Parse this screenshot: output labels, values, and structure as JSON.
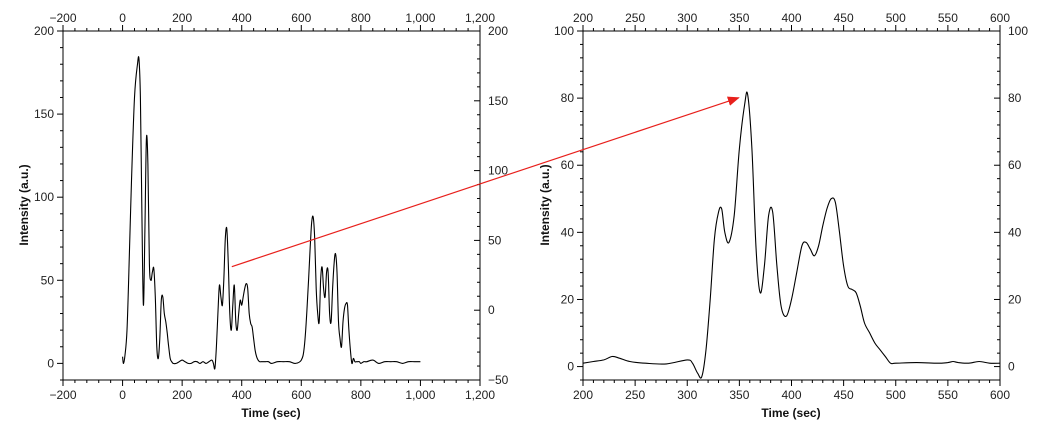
{
  "chart_data": [
    {
      "type": "line",
      "xlabel": "Time (sec)",
      "ylabel": "Intensity (a.u.)",
      "xlim": [
        -200,
        1200
      ],
      "ylim": [
        -10,
        200
      ],
      "x_ticks": [
        "-200",
        "0",
        "200",
        "400",
        "600",
        "800",
        "1,000",
        "1,200"
      ],
      "x_ticks_top": [
        "-200",
        "0",
        "200",
        "400",
        "600",
        "800",
        "1,000",
        "1,200"
      ],
      "y_ticks": [
        "0",
        "50",
        "100",
        "150",
        "200"
      ],
      "y_ticks_right": [
        "-50",
        "0",
        "50",
        "100",
        "150",
        "200"
      ],
      "right_axis_lim": [
        -50,
        200
      ],
      "series": [
        {
          "x": [
            0,
            3,
            8,
            15,
            22,
            30,
            40,
            50,
            55,
            60,
            65,
            70,
            75,
            80,
            85,
            90,
            95,
            100,
            105,
            110,
            115,
            120,
            125,
            130,
            135,
            140,
            145,
            150,
            155,
            160,
            165,
            170,
            180,
            190,
            200,
            210,
            220,
            230,
            240,
            250,
            260,
            270,
            280,
            290,
            300,
            305,
            310,
            315,
            320,
            325,
            330,
            335,
            340,
            345,
            350,
            355,
            360,
            365,
            370,
            375,
            380,
            385,
            390,
            395,
            400,
            405,
            410,
            415,
            420,
            425,
            430,
            435,
            440,
            445,
            450,
            455,
            460,
            465,
            470,
            480,
            490,
            500,
            520,
            540,
            560,
            580,
            600,
            610,
            620,
            630,
            635,
            640,
            645,
            650,
            655,
            660,
            665,
            670,
            675,
            680,
            685,
            690,
            695,
            700,
            705,
            710,
            715,
            720,
            725,
            730,
            735,
            740,
            745,
            750,
            755,
            760,
            765,
            770,
            775,
            780,
            785,
            790,
            795,
            800,
            810,
            820,
            840,
            860,
            880,
            900,
            920,
            940,
            960,
            980,
            1000
          ],
          "y": [
            4,
            0,
            5,
            20,
            60,
            110,
            160,
            180,
            183,
            160,
            90,
            35,
            80,
            135,
            120,
            60,
            50,
            55,
            57,
            40,
            10,
            3,
            15,
            38,
            40,
            30,
            25,
            18,
            10,
            3,
            1,
            0,
            0,
            1,
            2,
            1,
            0,
            0,
            1,
            1,
            0,
            1,
            0,
            1,
            2,
            0,
            -3,
            10,
            30,
            47,
            40,
            35,
            50,
            75,
            81,
            60,
            30,
            20,
            35,
            47,
            25,
            20,
            30,
            38,
            35,
            40,
            45,
            48,
            45,
            30,
            24,
            22,
            15,
            8,
            4,
            2,
            1,
            1,
            1,
            1,
            1,
            0,
            1,
            1,
            1,
            0,
            2,
            10,
            35,
            70,
            85,
            88,
            75,
            45,
            30,
            25,
            50,
            58,
            45,
            40,
            55,
            55,
            30,
            25,
            45,
            60,
            66,
            55,
            25,
            15,
            10,
            25,
            33,
            36,
            35,
            20,
            8,
            0,
            3,
            1,
            1,
            1,
            1,
            0,
            1,
            1,
            2,
            0,
            1,
            1,
            1,
            0,
            1,
            1,
            1
          ]
        }
      ]
    },
    {
      "type": "line",
      "xlabel": "Time (sec)",
      "ylabel": "Intensity (a.u.)",
      "xlim": [
        200,
        600
      ],
      "ylim": [
        -4,
        100
      ],
      "x_ticks": [
        "200",
        "250",
        "300",
        "350",
        "400",
        "450",
        "500",
        "550",
        "600"
      ],
      "x_ticks_top": [
        "200",
        "250",
        "300",
        "350",
        "400",
        "450",
        "500",
        "550",
        "600"
      ],
      "y_ticks": [
        "0",
        "20",
        "40",
        "60",
        "80",
        "100"
      ],
      "y_ticks_right": [
        "0",
        "20",
        "40",
        "60",
        "80",
        "100"
      ],
      "series": [
        {
          "x": [
            200,
            210,
            220,
            228,
            235,
            245,
            260,
            280,
            300,
            305,
            310,
            314,
            318,
            322,
            326,
            330,
            333,
            336,
            340,
            345,
            350,
            355,
            358,
            362,
            366,
            370,
            374,
            378,
            382,
            386,
            390,
            395,
            400,
            405,
            410,
            414,
            418,
            422,
            426,
            430,
            434,
            438,
            442,
            446,
            450,
            454,
            458,
            462,
            466,
            470,
            475,
            480,
            485,
            490,
            495,
            500,
            520,
            540,
            550,
            555,
            560,
            570,
            580,
            590,
            600
          ],
          "y": [
            1,
            1.5,
            2,
            3,
            2.5,
            1.5,
            1,
            0.8,
            2,
            1,
            -2,
            -3,
            5,
            20,
            38,
            46,
            47,
            40,
            37,
            45,
            65,
            78,
            81,
            65,
            35,
            22,
            30,
            45,
            46,
            30,
            18,
            15,
            20,
            28,
            36,
            37,
            35,
            33,
            36,
            42,
            47,
            50,
            49,
            40,
            30,
            24,
            23,
            22,
            18,
            13,
            10,
            7,
            5,
            3,
            1,
            1,
            1.2,
            1,
            1.2,
            1.5,
            1.2,
            1,
            1.5,
            1,
            1
          ]
        }
      ]
    }
  ],
  "annotation": {
    "color": "#e8201c",
    "from": {
      "chart": 0,
      "x": 360,
      "y": 81
    },
    "to": {
      "chart": 1,
      "x": 357,
      "y": 81
    }
  }
}
